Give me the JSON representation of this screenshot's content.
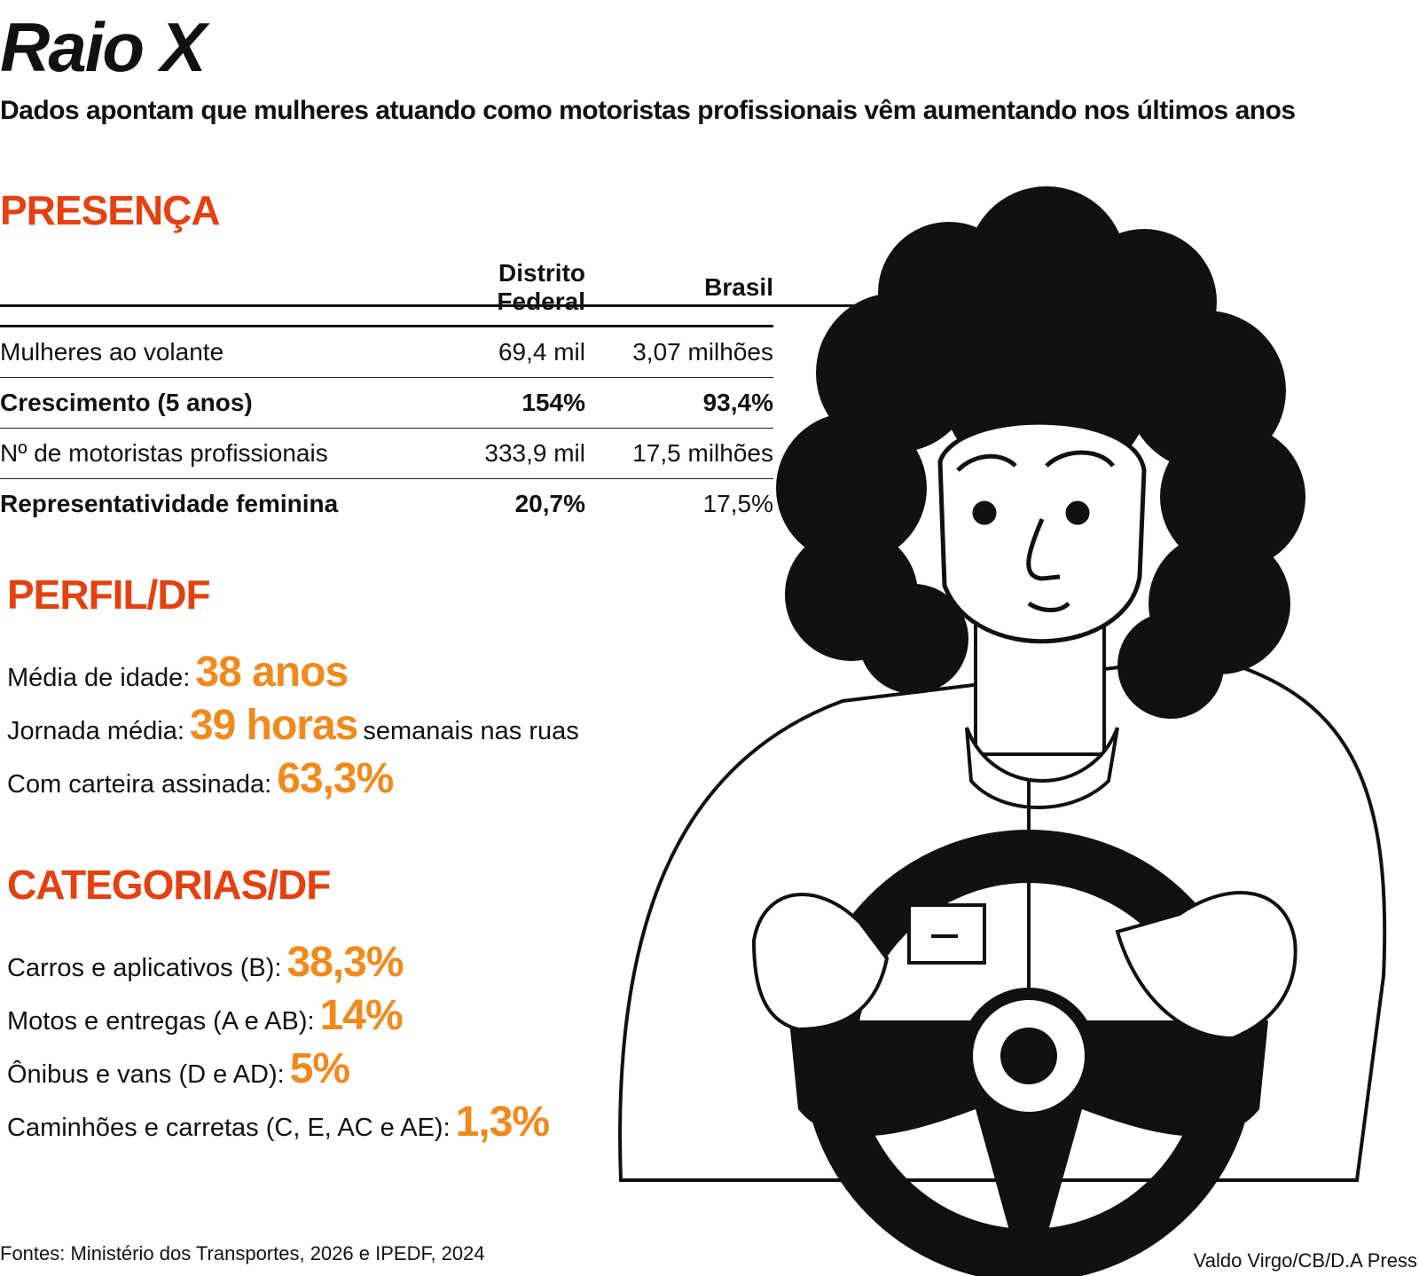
{
  "header": {
    "title": "Raio X",
    "subtitle": "Dados apontam que mulheres atuando como motoristas profissionais vêm aumentando nos últimos anos"
  },
  "presenca": {
    "heading": "PRESENÇA",
    "table": {
      "columns": [
        "Distrito Federal",
        "Brasil"
      ],
      "rows": [
        [
          "Mulheres ao volante",
          "69,4 mil",
          "3,07 milhões"
        ],
        [
          "Crescimento (5 anos)",
          "154%",
          "93,4%"
        ],
        [
          "Nº de motoristas profissionais",
          "333,9 mil",
          "17,5 milhões"
        ],
        [
          "Representatividade feminina",
          "20,7%",
          "17,5%"
        ]
      ]
    }
  },
  "perfil": {
    "heading": "PERFIL/DF",
    "items": [
      {
        "label": "Média de idade:",
        "value": "38 anos"
      },
      {
        "label": "Jornada média:",
        "value": "39 horas",
        "suffix": "semanais nas ruas"
      },
      {
        "label": "Com carteira assinada:",
        "value": "63,3%"
      }
    ]
  },
  "categorias": {
    "heading": "CATEGORIAS/DF",
    "items": [
      {
        "label": "Carros e aplicativos (B):",
        "value": "38,3%"
      },
      {
        "label": "Motos e entregas (A e AB):",
        "value": "14%"
      },
      {
        "label": "Ônibus e vans (D e AD):",
        "value": "5%"
      },
      {
        "label": "Caminhões e carretas (C, E, AC e AE):",
        "value": "1,3%"
      }
    ]
  },
  "footer": {
    "source": "Fontes: Ministério dos Transportes, 2026 e IPEDF, 2024",
    "credit": "Valdo Virgo/CB/D.A Press"
  }
}
